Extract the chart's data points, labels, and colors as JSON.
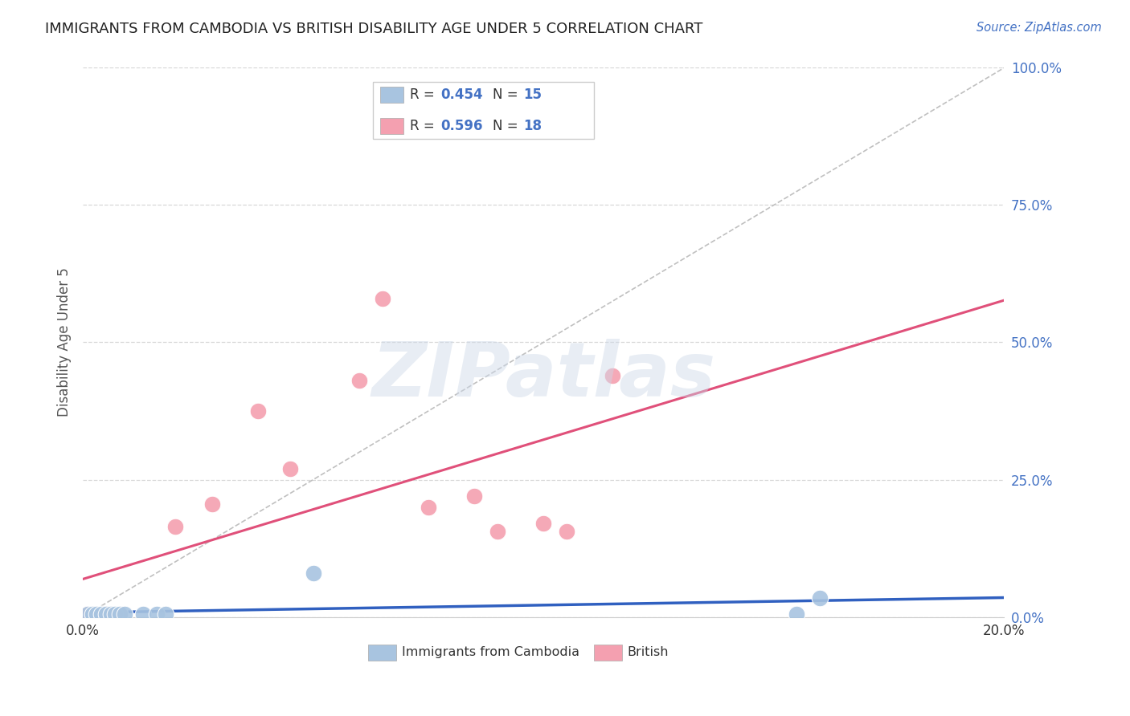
{
  "title": "IMMIGRANTS FROM CAMBODIA VS BRITISH DISABILITY AGE UNDER 5 CORRELATION CHART",
  "source": "Source: ZipAtlas.com",
  "ylabel": "Disability Age Under 5",
  "ytick_labels": [
    "0.0%",
    "25.0%",
    "50.0%",
    "75.0%",
    "100.0%"
  ],
  "ytick_values": [
    0.0,
    0.25,
    0.5,
    0.75,
    1.0
  ],
  "xlim": [
    0.0,
    0.2
  ],
  "ylim": [
    0.0,
    1.0
  ],
  "cambodia_x": [
    0.001,
    0.002,
    0.003,
    0.004,
    0.005,
    0.006,
    0.007,
    0.008,
    0.009,
    0.013,
    0.016,
    0.018,
    0.05,
    0.155,
    0.16
  ],
  "cambodia_y": [
    0.005,
    0.005,
    0.005,
    0.005,
    0.005,
    0.005,
    0.005,
    0.005,
    0.005,
    0.005,
    0.005,
    0.005,
    0.08,
    0.005,
    0.035
  ],
  "british_x": [
    0.001,
    0.002,
    0.003,
    0.004,
    0.005,
    0.008,
    0.02,
    0.028,
    0.038,
    0.045,
    0.06,
    0.065,
    0.075,
    0.085,
    0.09,
    0.1,
    0.105,
    0.115
  ],
  "british_y": [
    0.005,
    0.005,
    0.005,
    0.005,
    0.005,
    0.005,
    0.165,
    0.205,
    0.375,
    0.27,
    0.43,
    0.58,
    0.2,
    0.22,
    0.155,
    0.17,
    0.155,
    0.44
  ],
  "cambodia_R": 0.454,
  "cambodia_N": 15,
  "british_R": 0.596,
  "british_N": 18,
  "cambodia_color": "#a8c4e0",
  "british_color": "#f4a0b0",
  "cambodia_line_color": "#3060c0",
  "british_line_color": "#e0507a",
  "diagonal_color": "#c0c0c0",
  "legend_label_cambodia": "Immigrants from Cambodia",
  "legend_label_british": "British",
  "watermark_text": "ZIPatlas",
  "background_color": "#ffffff",
  "grid_color": "#d8d8d8",
  "title_color": "#222222",
  "source_color": "#4472c4",
  "axis_label_color": "#555555",
  "right_tick_color": "#4472c4"
}
